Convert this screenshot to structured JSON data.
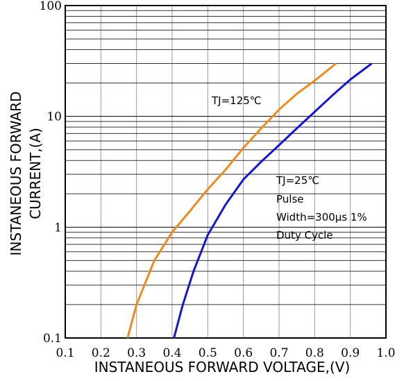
{
  "chart_data": {
    "type": "line",
    "xlabel": "INSTANEOUS FORWARD VOLTAGE,(V)",
    "ylabel_line1": "INSTANEOUS FORWARD",
    "ylabel_line2": "CURRENT,(A)",
    "x_scale": "linear",
    "y_scale": "log",
    "xlim": [
      0.1,
      1.0
    ],
    "ylim": [
      0.1,
      100
    ],
    "grid": true,
    "x_ticks": [
      "0.1",
      "0.2",
      "0.3",
      "0.4",
      "0.5",
      "0.6",
      "0.7",
      "0.8",
      "0.9",
      "1.0"
    ],
    "y_ticks": [
      "0.1",
      "1",
      "10",
      "100"
    ],
    "annotations": {
      "tj125": "TJ=125℃",
      "tj25": "TJ=25℃",
      "pulse": "Pulse",
      "width": "Width=300μs 1%",
      "duty": "Duty Cycle"
    },
    "series": [
      {
        "name": "TJ=125℃",
        "color": "#f08a1c",
        "points": [
          [
            0.275,
            0.1
          ],
          [
            0.3,
            0.2
          ],
          [
            0.35,
            0.5
          ],
          [
            0.4,
            0.9
          ],
          [
            0.45,
            1.4
          ],
          [
            0.5,
            2.2
          ],
          [
            0.55,
            3.3
          ],
          [
            0.6,
            5.2
          ],
          [
            0.65,
            7.8
          ],
          [
            0.7,
            11.5
          ],
          [
            0.75,
            16.0
          ],
          [
            0.8,
            21.0
          ],
          [
            0.86,
            30.0
          ]
        ]
      },
      {
        "name": "TJ=25℃",
        "color": "#1414d8",
        "points": [
          [
            0.405,
            0.1
          ],
          [
            0.43,
            0.2
          ],
          [
            0.46,
            0.4
          ],
          [
            0.5,
            0.85
          ],
          [
            0.55,
            1.6
          ],
          [
            0.6,
            2.7
          ],
          [
            0.65,
            3.9
          ],
          [
            0.7,
            5.5
          ],
          [
            0.75,
            7.8
          ],
          [
            0.8,
            11.0
          ],
          [
            0.85,
            15.5
          ],
          [
            0.9,
            21.5
          ],
          [
            0.96,
            30.0
          ]
        ]
      }
    ]
  }
}
